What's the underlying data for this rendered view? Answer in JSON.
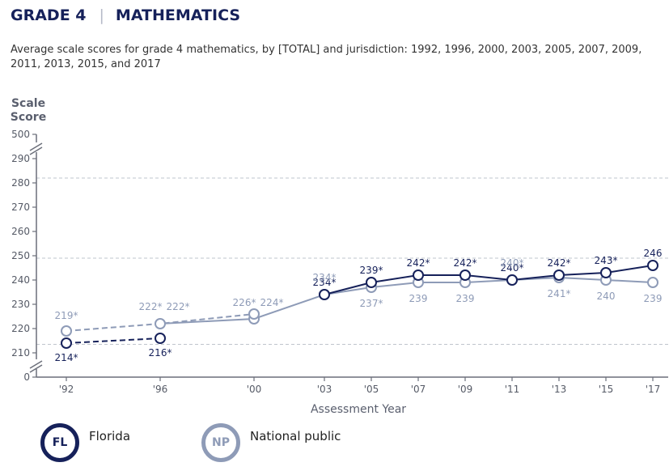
{
  "header": {
    "subject_grade": "GRADE 4",
    "subject_name": "MATHEMATICS",
    "subtitle": "Average scale scores for grade 4 mathematics, by [TOTAL] and jurisdiction: 1992, 1996, 2000, 2003, 2005, 2007, 2009, 2011, 2013, 2015, and 2017"
  },
  "legend": [
    {
      "badge": "FL",
      "label": "Florida",
      "color": "#16215a"
    },
    {
      "badge": "NP",
      "label": "National public",
      "color": "#8e9bb7"
    }
  ],
  "chart_data": {
    "type": "line",
    "ylabel": "Scale Score",
    "xlabel": "Assessment Year",
    "x": [
      "'92",
      "'96",
      "'00",
      "'03",
      "'05",
      "'07",
      "'09",
      "'11",
      "'13",
      "'15",
      "'17"
    ],
    "ylim": [
      210,
      290
    ],
    "y_ticks": [
      "500",
      "290",
      "280",
      "270",
      "260",
      "250",
      "240",
      "230",
      "220",
      "210",
      "0"
    ],
    "axis_break": true,
    "grid_lines": [
      282,
      249,
      213.5
    ],
    "dashed_segments_through_index": 2,
    "series": [
      {
        "name": "Florida",
        "color": "#16215a",
        "values": [
          214,
          216,
          null,
          234,
          239,
          242,
          242,
          240,
          242,
          243,
          246
        ],
        "labels": [
          "214*",
          "216*",
          "",
          "234*",
          "239*",
          "242*",
          "242*",
          "240*",
          "242*",
          "243*",
          "246"
        ],
        "label_positions": [
          "below",
          "below",
          "",
          "above",
          "above",
          "above",
          "above",
          "above",
          "above",
          "above",
          "above"
        ]
      },
      {
        "name": "National public",
        "color": "#8e9bb7",
        "values": [
          219,
          222,
          224,
          234,
          237,
          239,
          239,
          240,
          241,
          240,
          239
        ],
        "labels": [
          "219*",
          "222*",
          "226* 224*",
          "234*",
          "237*",
          "239",
          "239",
          "240*",
          "241*",
          "240",
          "239"
        ],
        "label_positions": [
          "above",
          "above",
          "above",
          "above",
          "below",
          "below",
          "below",
          "above",
          "below",
          "below",
          "below"
        ],
        "accommodation_not_permitted_values": [
          null,
          222,
          226,
          null,
          null,
          null,
          null,
          null,
          null,
          null,
          null
        ]
      }
    ]
  }
}
